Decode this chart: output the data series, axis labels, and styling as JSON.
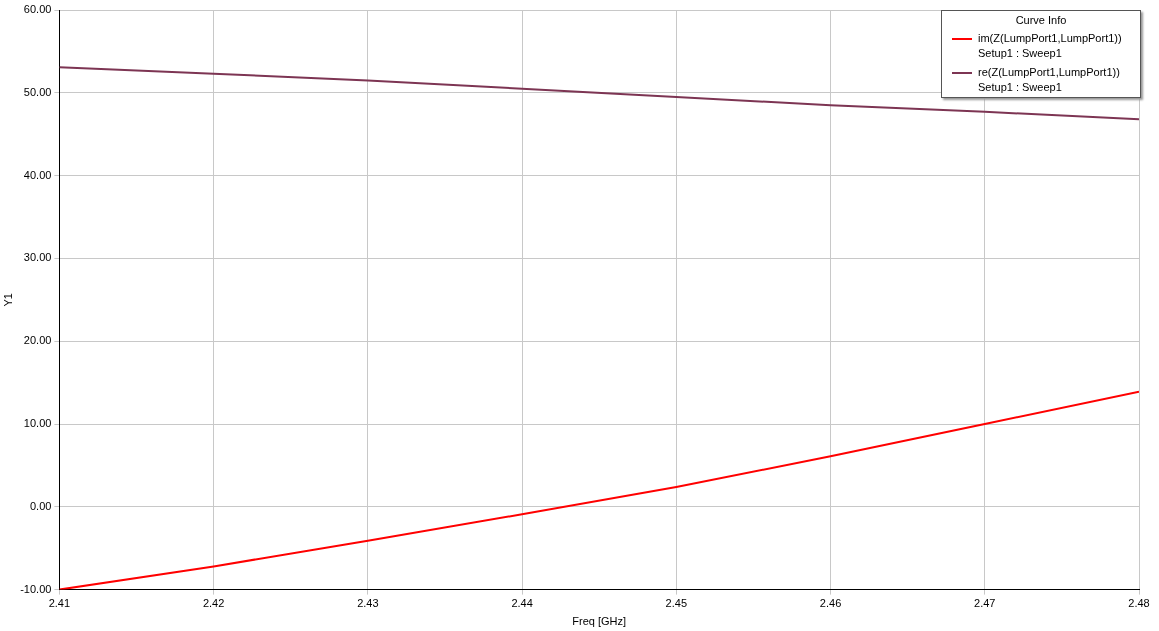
{
  "chart_data": {
    "type": "line",
    "xlabel": "Freq [GHz]",
    "ylabel": "Y1",
    "legend_title": "Curve Info",
    "legend": "top right",
    "grid": true,
    "marker": "none",
    "line_style": "solid",
    "xlim": [
      2.41,
      2.48
    ],
    "xticks": [
      2.41,
      2.42,
      2.43,
      2.44,
      2.45,
      2.46,
      2.47,
      2.48
    ],
    "ylim": [
      -10,
      60
    ],
    "yticks": [
      {
        "value": -10,
        "label": "-10.00"
      },
      {
        "value": 0,
        "label": "0.00"
      },
      {
        "value": 10,
        "label": "10.00"
      },
      {
        "value": 20,
        "label": "20.00"
      },
      {
        "value": 30,
        "label": "30.00"
      },
      {
        "value": 40,
        "label": "40.00"
      },
      {
        "value": 50,
        "label": "50.00"
      },
      {
        "value": 60,
        "label": "60.00"
      }
    ],
    "x": [
      2.41,
      2.42,
      2.43,
      2.44,
      2.45,
      2.46,
      2.47,
      2.48
    ],
    "series": [
      {
        "name": "im(Z(LumpPort1,LumpPort1))\nSetup1 : Sweep1",
        "color": "#ff0000",
        "values": [
          -10,
          -7.2,
          -4.1,
          -0.9,
          2.4,
          6.1,
          10,
          13.9
        ]
      },
      {
        "name": "re(Z(LumpPort1,LumpPort1))\nSetup1 : Sweep1",
        "color": "#7d3553",
        "values": [
          53.1,
          52.3,
          51.5,
          50.5,
          49.5,
          48.5,
          47.7,
          46.8
        ]
      }
    ]
  }
}
